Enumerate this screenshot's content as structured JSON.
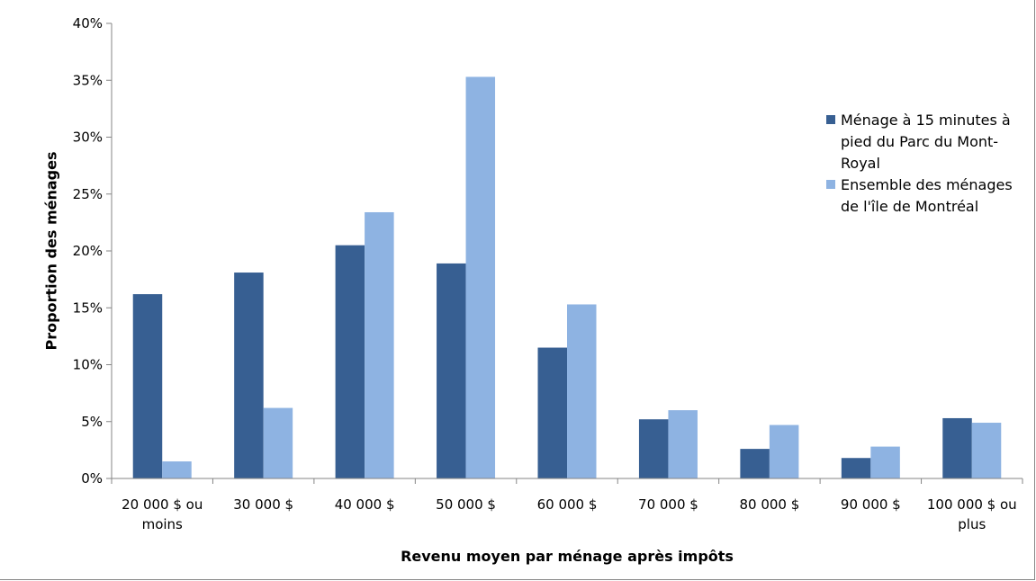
{
  "chart_data": {
    "type": "bar",
    "title": "",
    "xlabel": "Revenu moyen par ménage après impôts",
    "ylabel": "Proportion des ménages",
    "ylim": [
      0,
      40
    ],
    "yticks": [
      "0%",
      "5%",
      "10%",
      "15%",
      "20%",
      "25%",
      "30%",
      "35%",
      "40%"
    ],
    "categories": [
      [
        "20 000 $ ou",
        "moins"
      ],
      [
        "30 000 $"
      ],
      [
        "40 000 $"
      ],
      [
        "50 000 $"
      ],
      [
        "60 000 $"
      ],
      [
        "70 000 $"
      ],
      [
        "80 000 $"
      ],
      [
        "90 000 $"
      ],
      [
        "100 000 $ ou",
        "plus"
      ]
    ],
    "series": [
      {
        "name": "Ménage à 15 minutes à pied du Parc du Mont-Royal",
        "color": "#375f92",
        "values": [
          16.2,
          18.1,
          20.5,
          18.9,
          11.5,
          5.2,
          2.6,
          1.8,
          5.3
        ]
      },
      {
        "name": "Ensemble des ménages de l'île de Montréal",
        "color": "#8eb3e2",
        "values": [
          1.5,
          6.2,
          23.4,
          35.3,
          15.3,
          6.0,
          4.7,
          2.8,
          4.9
        ]
      }
    ],
    "grid": false,
    "legend_position": "right"
  }
}
